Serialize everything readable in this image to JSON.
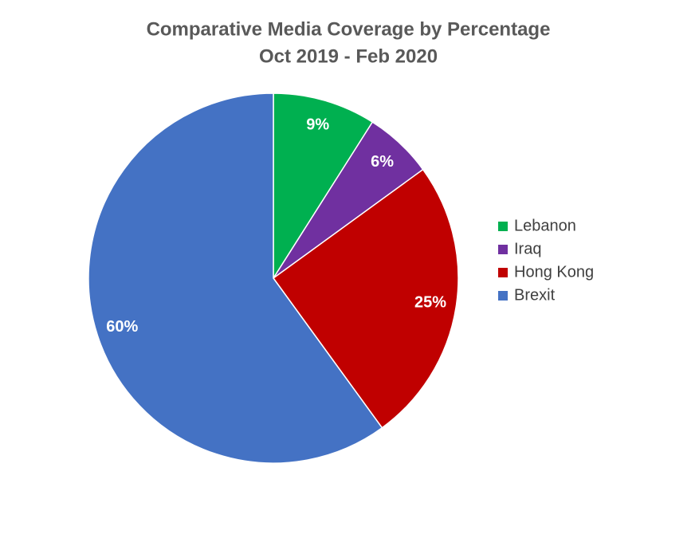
{
  "chart_data": {
    "type": "pie",
    "title": "Comparative Media Coverage by Percentage",
    "subtitle": "Oct 2019 - Feb 2020",
    "categories": [
      "Lebanon",
      "Iraq",
      "Hong Kong",
      "Brexit"
    ],
    "values": [
      9,
      6,
      25,
      60
    ],
    "value_labels": [
      "9%",
      "6%",
      "25%",
      "60%"
    ],
    "colors": [
      "#00b050",
      "#7030a0",
      "#c00000",
      "#4472c4"
    ],
    "legend": "right"
  }
}
